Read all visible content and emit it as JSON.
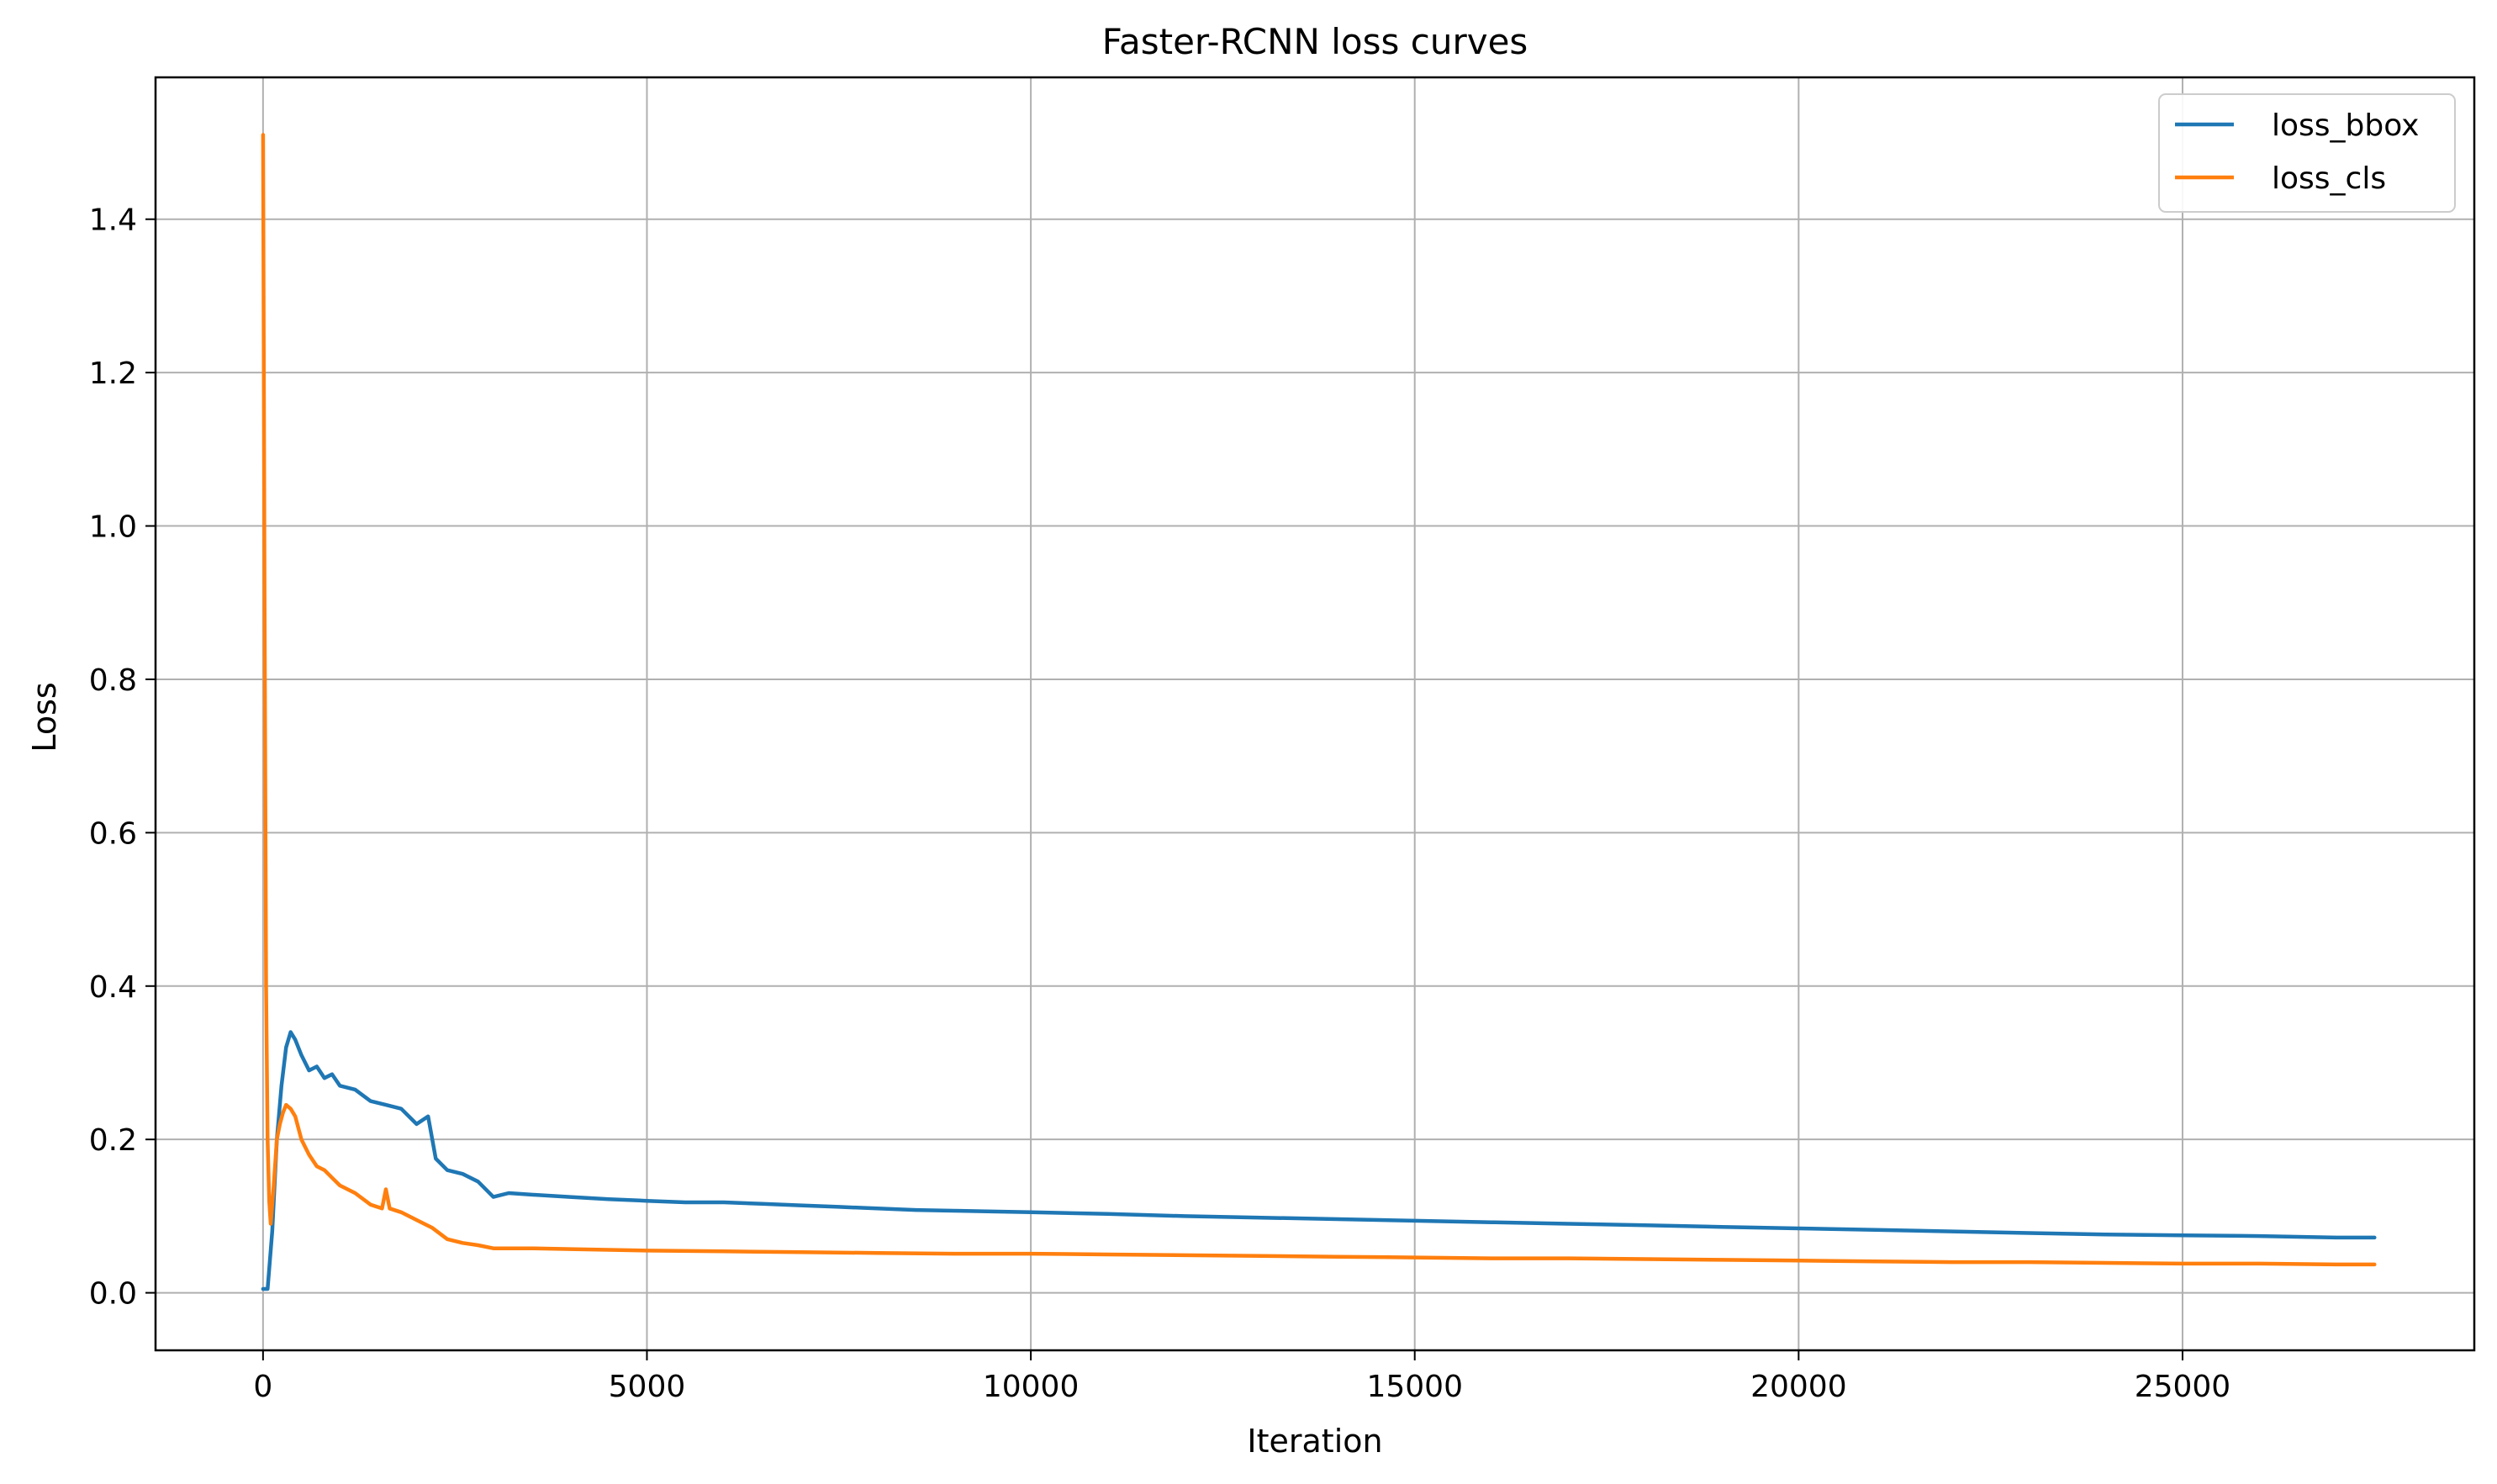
{
  "chart_data": {
    "type": "line",
    "title": "Faster-RCNN loss curves",
    "xlabel": "Iteration",
    "ylabel": "Loss",
    "xlim": [
      -1400,
      28800
    ],
    "ylim": [
      -0.075,
      1.585
    ],
    "xticks": [
      0,
      5000,
      10000,
      15000,
      20000,
      25000
    ],
    "xtick_labels": [
      "0",
      "5000",
      "10000",
      "15000",
      "20000",
      "25000"
    ],
    "yticks": [
      0.0,
      0.2,
      0.4,
      0.6,
      0.8,
      1.0,
      1.2,
      1.4
    ],
    "ytick_labels": [
      "0.0",
      "0.2",
      "0.4",
      "0.6",
      "0.8",
      "1.0",
      "1.2",
      "1.4"
    ],
    "grid": true,
    "legend_position": "top-right",
    "series": [
      {
        "name": "loss_bbox",
        "color": "#1f77b4",
        "x": [
          0,
          60,
          120,
          180,
          240,
          300,
          360,
          420,
          500,
          600,
          700,
          800,
          900,
          1000,
          1200,
          1400,
          1600,
          1800,
          2000,
          2150,
          2250,
          2400,
          2600,
          2800,
          3000,
          3200,
          3500,
          4000,
          4500,
          5000,
          5500,
          6000,
          6500,
          7000,
          7500,
          8000,
          8500,
          9000,
          9500,
          10000,
          11000,
          12000,
          13000,
          14000,
          15000,
          16000,
          17000,
          18000,
          19000,
          20000,
          21000,
          22000,
          23000,
          24000,
          25000,
          26000,
          27000,
          27500
        ],
        "y": [
          0.005,
          0.005,
          0.08,
          0.2,
          0.27,
          0.32,
          0.34,
          0.33,
          0.31,
          0.29,
          0.295,
          0.28,
          0.285,
          0.27,
          0.265,
          0.25,
          0.245,
          0.24,
          0.22,
          0.23,
          0.175,
          0.16,
          0.155,
          0.145,
          0.125,
          0.13,
          0.128,
          0.125,
          0.122,
          0.12,
          0.118,
          0.118,
          0.116,
          0.114,
          0.112,
          0.11,
          0.108,
          0.107,
          0.106,
          0.105,
          0.103,
          0.1,
          0.098,
          0.096,
          0.094,
          0.092,
          0.09,
          0.088,
          0.086,
          0.084,
          0.082,
          0.08,
          0.078,
          0.076,
          0.075,
          0.074,
          0.072,
          0.072
        ]
      },
      {
        "name": "loss_cls",
        "color": "#ff7f0e",
        "x": [
          0,
          20,
          40,
          60,
          80,
          100,
          140,
          180,
          220,
          260,
          300,
          360,
          420,
          500,
          600,
          700,
          800,
          900,
          1000,
          1200,
          1400,
          1550,
          1600,
          1650,
          1800,
          2000,
          2200,
          2400,
          2600,
          2800,
          3000,
          3500,
          4000,
          5000,
          6000,
          7000,
          8000,
          9000,
          10000,
          11000,
          12000,
          13000,
          14000,
          15000,
          16000,
          17000,
          18000,
          19000,
          20000,
          21000,
          22000,
          23000,
          24000,
          25000,
          26000,
          27000,
          27500
        ],
        "y": [
          1.51,
          0.9,
          0.4,
          0.2,
          0.12,
          0.09,
          0.14,
          0.2,
          0.22,
          0.235,
          0.245,
          0.24,
          0.23,
          0.2,
          0.18,
          0.165,
          0.16,
          0.15,
          0.14,
          0.13,
          0.115,
          0.11,
          0.135,
          0.11,
          0.105,
          0.095,
          0.085,
          0.07,
          0.065,
          0.062,
          0.058,
          0.058,
          0.057,
          0.055,
          0.054,
          0.053,
          0.052,
          0.051,
          0.051,
          0.05,
          0.049,
          0.048,
          0.047,
          0.046,
          0.045,
          0.045,
          0.044,
          0.043,
          0.042,
          0.041,
          0.04,
          0.04,
          0.039,
          0.038,
          0.038,
          0.037,
          0.037
        ]
      }
    ]
  }
}
